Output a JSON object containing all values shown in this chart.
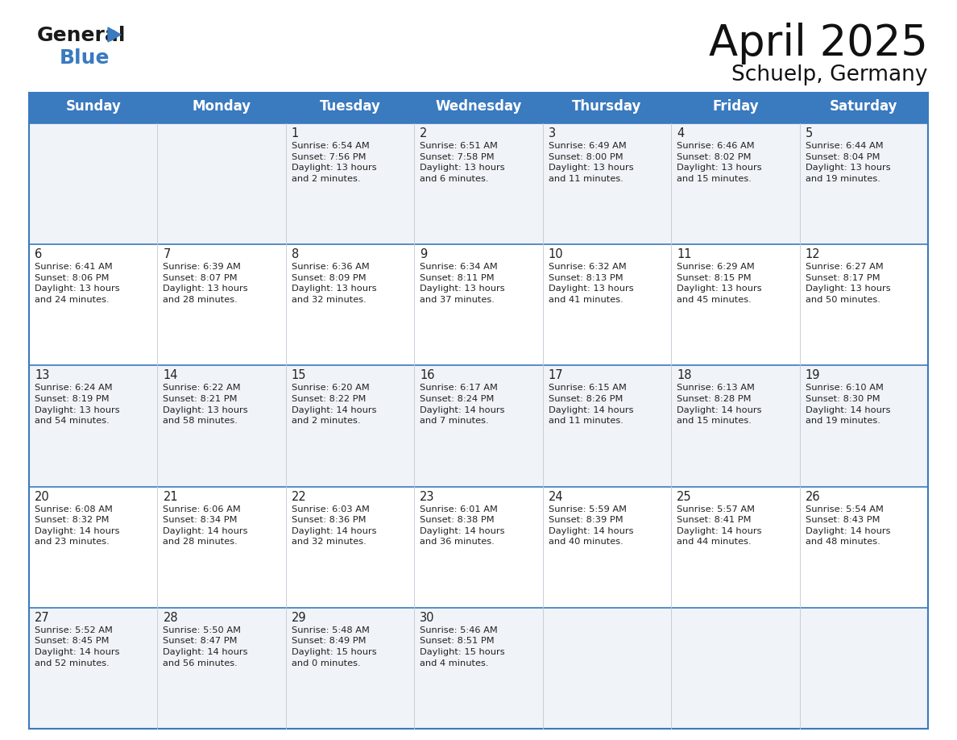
{
  "title": "April 2025",
  "subtitle": "Schuelp, Germany",
  "header_color": "#3a7abf",
  "header_text_color": "#ffffff",
  "row_bg_odd": "#f0f3f7",
  "row_bg_even": "#ffffff",
  "border_color": "#3a7abf",
  "cell_border_color": "#c0c8d4",
  "text_color": "#222222",
  "day_names": [
    "Sunday",
    "Monday",
    "Tuesday",
    "Wednesday",
    "Thursday",
    "Friday",
    "Saturday"
  ],
  "weeks": [
    [
      {
        "day": null,
        "info": null
      },
      {
        "day": null,
        "info": null
      },
      {
        "day": 1,
        "info": "Sunrise: 6:54 AM\nSunset: 7:56 PM\nDaylight: 13 hours\nand 2 minutes."
      },
      {
        "day": 2,
        "info": "Sunrise: 6:51 AM\nSunset: 7:58 PM\nDaylight: 13 hours\nand 6 minutes."
      },
      {
        "day": 3,
        "info": "Sunrise: 6:49 AM\nSunset: 8:00 PM\nDaylight: 13 hours\nand 11 minutes."
      },
      {
        "day": 4,
        "info": "Sunrise: 6:46 AM\nSunset: 8:02 PM\nDaylight: 13 hours\nand 15 minutes."
      },
      {
        "day": 5,
        "info": "Sunrise: 6:44 AM\nSunset: 8:04 PM\nDaylight: 13 hours\nand 19 minutes."
      }
    ],
    [
      {
        "day": 6,
        "info": "Sunrise: 6:41 AM\nSunset: 8:06 PM\nDaylight: 13 hours\nand 24 minutes."
      },
      {
        "day": 7,
        "info": "Sunrise: 6:39 AM\nSunset: 8:07 PM\nDaylight: 13 hours\nand 28 minutes."
      },
      {
        "day": 8,
        "info": "Sunrise: 6:36 AM\nSunset: 8:09 PM\nDaylight: 13 hours\nand 32 minutes."
      },
      {
        "day": 9,
        "info": "Sunrise: 6:34 AM\nSunset: 8:11 PM\nDaylight: 13 hours\nand 37 minutes."
      },
      {
        "day": 10,
        "info": "Sunrise: 6:32 AM\nSunset: 8:13 PM\nDaylight: 13 hours\nand 41 minutes."
      },
      {
        "day": 11,
        "info": "Sunrise: 6:29 AM\nSunset: 8:15 PM\nDaylight: 13 hours\nand 45 minutes."
      },
      {
        "day": 12,
        "info": "Sunrise: 6:27 AM\nSunset: 8:17 PM\nDaylight: 13 hours\nand 50 minutes."
      }
    ],
    [
      {
        "day": 13,
        "info": "Sunrise: 6:24 AM\nSunset: 8:19 PM\nDaylight: 13 hours\nand 54 minutes."
      },
      {
        "day": 14,
        "info": "Sunrise: 6:22 AM\nSunset: 8:21 PM\nDaylight: 13 hours\nand 58 minutes."
      },
      {
        "day": 15,
        "info": "Sunrise: 6:20 AM\nSunset: 8:22 PM\nDaylight: 14 hours\nand 2 minutes."
      },
      {
        "day": 16,
        "info": "Sunrise: 6:17 AM\nSunset: 8:24 PM\nDaylight: 14 hours\nand 7 minutes."
      },
      {
        "day": 17,
        "info": "Sunrise: 6:15 AM\nSunset: 8:26 PM\nDaylight: 14 hours\nand 11 minutes."
      },
      {
        "day": 18,
        "info": "Sunrise: 6:13 AM\nSunset: 8:28 PM\nDaylight: 14 hours\nand 15 minutes."
      },
      {
        "day": 19,
        "info": "Sunrise: 6:10 AM\nSunset: 8:30 PM\nDaylight: 14 hours\nand 19 minutes."
      }
    ],
    [
      {
        "day": 20,
        "info": "Sunrise: 6:08 AM\nSunset: 8:32 PM\nDaylight: 14 hours\nand 23 minutes."
      },
      {
        "day": 21,
        "info": "Sunrise: 6:06 AM\nSunset: 8:34 PM\nDaylight: 14 hours\nand 28 minutes."
      },
      {
        "day": 22,
        "info": "Sunrise: 6:03 AM\nSunset: 8:36 PM\nDaylight: 14 hours\nand 32 minutes."
      },
      {
        "day": 23,
        "info": "Sunrise: 6:01 AM\nSunset: 8:38 PM\nDaylight: 14 hours\nand 36 minutes."
      },
      {
        "day": 24,
        "info": "Sunrise: 5:59 AM\nSunset: 8:39 PM\nDaylight: 14 hours\nand 40 minutes."
      },
      {
        "day": 25,
        "info": "Sunrise: 5:57 AM\nSunset: 8:41 PM\nDaylight: 14 hours\nand 44 minutes."
      },
      {
        "day": 26,
        "info": "Sunrise: 5:54 AM\nSunset: 8:43 PM\nDaylight: 14 hours\nand 48 minutes."
      }
    ],
    [
      {
        "day": 27,
        "info": "Sunrise: 5:52 AM\nSunset: 8:45 PM\nDaylight: 14 hours\nand 52 minutes."
      },
      {
        "day": 28,
        "info": "Sunrise: 5:50 AM\nSunset: 8:47 PM\nDaylight: 14 hours\nand 56 minutes."
      },
      {
        "day": 29,
        "info": "Sunrise: 5:48 AM\nSunset: 8:49 PM\nDaylight: 15 hours\nand 0 minutes."
      },
      {
        "day": 30,
        "info": "Sunrise: 5:46 AM\nSunset: 8:51 PM\nDaylight: 15 hours\nand 4 minutes."
      },
      {
        "day": null,
        "info": null
      },
      {
        "day": null,
        "info": null
      },
      {
        "day": null,
        "info": null
      }
    ]
  ],
  "logo_general_color": "#1a1a1a",
  "logo_blue_color": "#3a7abf",
  "title_fontsize": 38,
  "subtitle_fontsize": 19,
  "header_fontsize": 12,
  "day_num_fontsize": 10.5,
  "info_fontsize": 8.2,
  "fig_width": 11.88,
  "fig_height": 9.18,
  "fig_dpi": 100
}
